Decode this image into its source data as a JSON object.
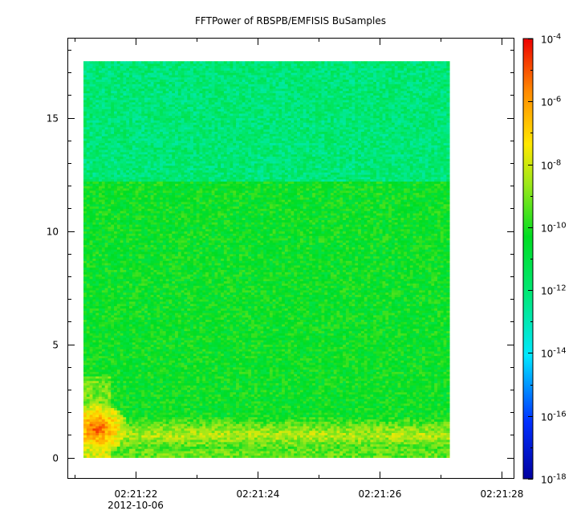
{
  "chart_data": {
    "type": "heatmap",
    "title": "FFTPower of RBSPB/EMFISIS  BuSamples",
    "xlabel": "",
    "ylabel": "",
    "x_date_label": "2012-10-06",
    "x_ticks": [
      {
        "value": 22,
        "label": "02:21:22"
      },
      {
        "value": 24,
        "label": "02:21:24"
      },
      {
        "value": 26,
        "label": "02:21:26"
      },
      {
        "value": 28,
        "label": "02:21:28"
      }
    ],
    "xlim": [
      20.9,
      28.2
    ],
    "y_ticks": [
      {
        "value": 0,
        "label": "0"
      },
      {
        "value": 5,
        "label": "5"
      },
      {
        "value": 10,
        "label": "10"
      },
      {
        "value": 15,
        "label": "15"
      }
    ],
    "ylim": [
      -0.9,
      18.5
    ],
    "data_extent": {
      "x": [
        21.15,
        27.15
      ],
      "y": [
        0,
        17.5
      ]
    },
    "colorbar": {
      "scale": "log",
      "range": [
        -18,
        -4
      ],
      "ticks": [
        {
          "value": -4,
          "label": "10",
          "exp": "-4"
        },
        {
          "value": -6,
          "label": "10",
          "exp": "-6"
        },
        {
          "value": -8,
          "label": "10",
          "exp": "-8"
        },
        {
          "value": -10,
          "label": "10",
          "exp": "-10"
        },
        {
          "value": -12,
          "label": "10",
          "exp": "-12"
        },
        {
          "value": -14,
          "label": "10",
          "exp": "-14"
        },
        {
          "value": -16,
          "label": "10",
          "exp": "-16"
        },
        {
          "value": -18,
          "label": "10",
          "exp": "-18"
        }
      ]
    },
    "features": {
      "upper_band": {
        "y": [
          12.2,
          17.5
        ],
        "log_power": -12.0
      },
      "middle_band": {
        "y": [
          0.6,
          12.2
        ],
        "log_power": -10.3
      },
      "low_freq_line": {
        "y": [
          0.5,
          1.5
        ],
        "log_power": -8.3
      },
      "burst": {
        "x": [
          21.15,
          21.6
        ],
        "y": [
          0.8,
          1.8
        ],
        "log_power": -5.0
      }
    }
  }
}
